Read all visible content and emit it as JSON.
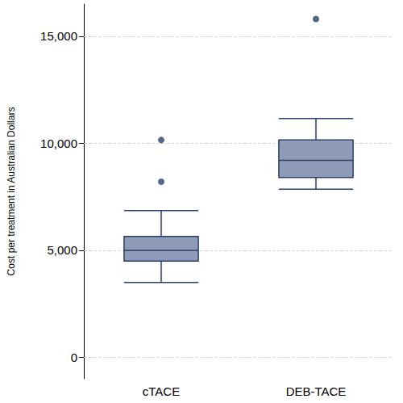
{
  "chart_data": {
    "type": "boxplot",
    "categories": [
      "cTACE",
      "DEB-TACE"
    ],
    "ylabel": "Cost per treatment in Australian Dollars",
    "boxes": [
      {
        "min": 3500,
        "q1": 4500,
        "median": 5000,
        "q3": 5650,
        "max": 6850,
        "outliers": [
          8200,
          10150
        ]
      },
      {
        "min": 7850,
        "q1": 8400,
        "median": 9200,
        "q3": 10150,
        "max": 11150,
        "outliers": [
          15800
        ]
      }
    ],
    "color": "#8f9bb7",
    "ylim": [
      -1000,
      16500
    ],
    "yticks": [
      0,
      {
        "value": 5000,
        "label": "5,000"
      },
      {
        "value": 10000,
        "label": "10,000"
      },
      {
        "value": 15000,
        "label": "15,000"
      }
    ],
    "grid": true
  }
}
